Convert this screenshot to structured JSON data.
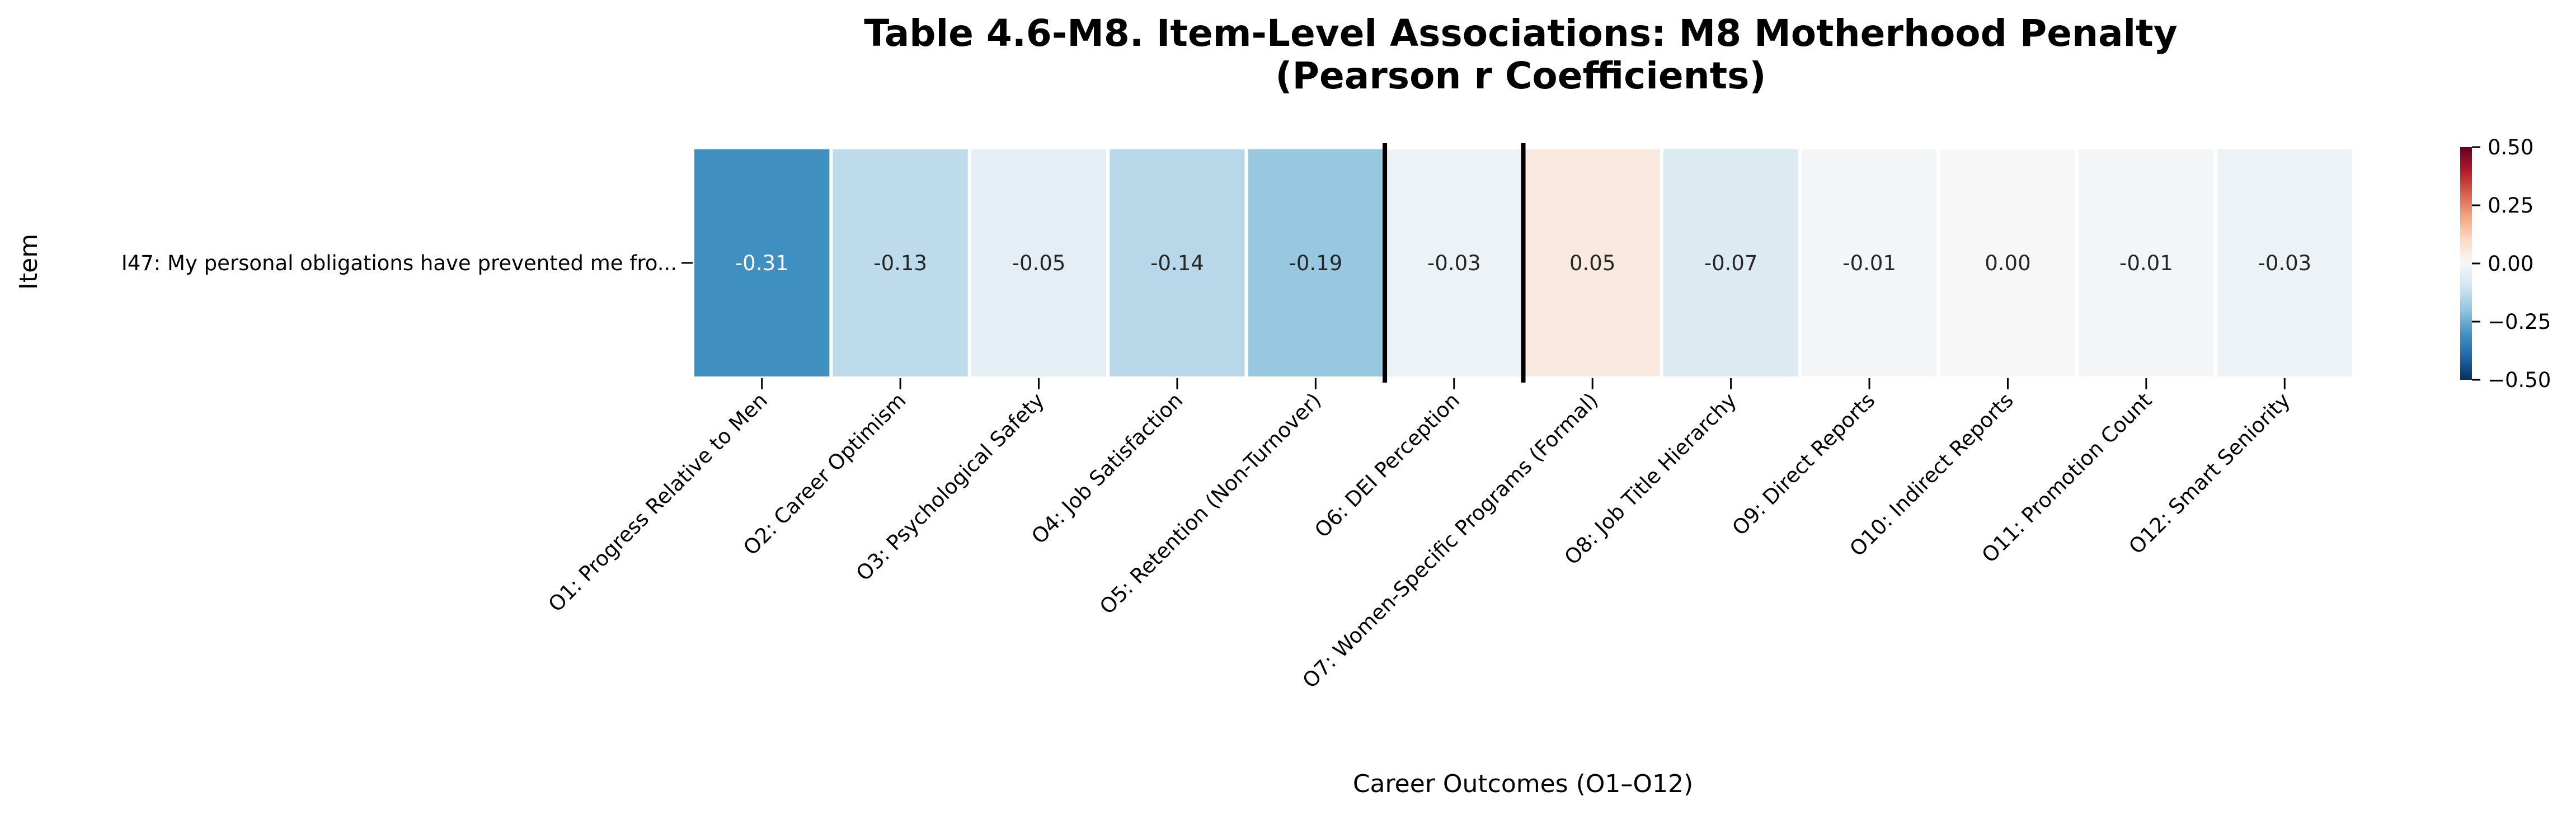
{
  "chart_data": {
    "type": "heatmap",
    "title": [
      "Table 4.6-M8. Item-Level Associations: M8 Motherhood Penalty",
      "(Pearson r Coefficients)"
    ],
    "xlabel": "Career Outcomes (O1–O12)",
    "ylabel": "Item",
    "rows": [
      "I47: My personal obligations have prevented me fro..."
    ],
    "columns": [
      "O1: Progress Relative to Men",
      "O2: Career Optimism",
      "O3: Psychological Safety",
      "O4: Job Satisfaction",
      "O5: Retention (Non-Turnover)",
      "O6: DEI Perception",
      "O7: Women-Specific Programs (Formal)",
      "O8: Job Title Hierarchy",
      "O9: Direct Reports",
      "O10: Indirect Reports",
      "O11: Promotion Count",
      "O12: Smart Seniority"
    ],
    "values": [
      [
        -0.31,
        -0.13,
        -0.05,
        -0.14,
        -0.19,
        -0.03,
        0.05,
        -0.07,
        -0.01,
        0.0,
        -0.01,
        -0.03
      ]
    ],
    "annotations": [
      [
        "-0.31",
        "-0.13",
        "-0.05",
        "-0.14",
        "-0.19",
        "-0.03",
        "0.05",
        "-0.07",
        "-0.01",
        "0.00",
        "-0.01",
        "-0.03"
      ]
    ],
    "colormap": "RdBu_r",
    "vmin": -0.5,
    "vmax": 0.5,
    "colorbar_ticks": [
      "0.50",
      "0.25",
      "0.00",
      "−0.25",
      "−0.50"
    ],
    "colorbar_tick_values": [
      0.5,
      0.25,
      0,
      -0.25,
      -0.5
    ],
    "highlighted_column_separators_after": [
      5,
      6
    ],
    "separator_color": "#000000",
    "cell_border_color": "#ffffff"
  }
}
